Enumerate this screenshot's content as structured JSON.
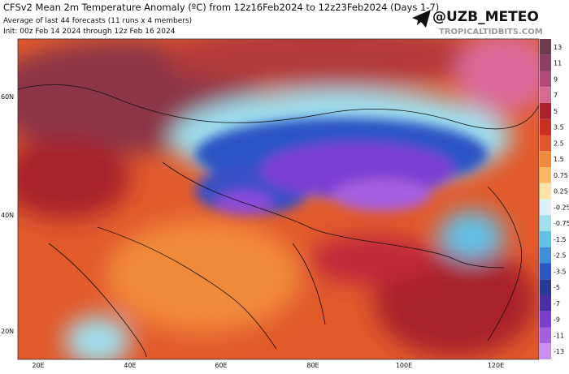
{
  "header": {
    "title": "CFSv2 Mean 2m Temperature Anomaly (ºC) from 12z16Feb2024 to 12z23Feb2024 (Days 1-7)",
    "subtitle": "Average of last 44 forecasts (11 runs x 4 members)",
    "init": "Init: 00z Feb 14 2024 through 12z Feb 16 2024",
    "handle": "@UZB_METEO",
    "source": "TROPICALTIDBITS.COM"
  },
  "map": {
    "lat_labels": [
      "60N",
      "40N",
      "20N"
    ],
    "lon_labels": [
      "20E",
      "40E",
      "60E",
      "80E",
      "100E",
      "120E"
    ]
  },
  "colorbar": [
    {
      "label": "13",
      "color": "#6e3b4e"
    },
    {
      "label": "11",
      "color": "#8c3f63"
    },
    {
      "label": "9",
      "color": "#b24a7c"
    },
    {
      "label": "7",
      "color": "#d46a92"
    },
    {
      "label": "5",
      "color": "#a8212a"
    },
    {
      "label": "3.5",
      "color": "#cc2f22"
    },
    {
      "label": "2.5",
      "color": "#e2542a"
    },
    {
      "label": "1.5",
      "color": "#f08a3a"
    },
    {
      "label": "0.75",
      "color": "#f7b860"
    },
    {
      "label": "0.25",
      "color": "#fbe3a8"
    },
    {
      "label": "-0.25",
      "color": "#d8f2f5"
    },
    {
      "label": "-0.75",
      "color": "#9fe0ef"
    },
    {
      "label": "-1.5",
      "color": "#5fc2e8"
    },
    {
      "label": "-2.5",
      "color": "#3b8fdc"
    },
    {
      "label": "-3.5",
      "color": "#2a55c4"
    },
    {
      "label": "-5",
      "color": "#283a9a"
    },
    {
      "label": "-7",
      "color": "#4b2fa8"
    },
    {
      "label": "-9",
      "color": "#7b3fd0"
    },
    {
      "label": "-11",
      "color": "#a65ee0"
    },
    {
      "label": "-13",
      "color": "#c98cf0"
    }
  ]
}
